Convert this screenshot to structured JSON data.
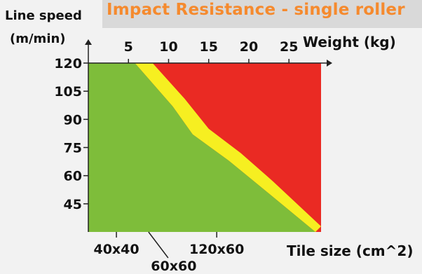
{
  "chart_data": {
    "type": "area",
    "title": "Impact Resistance - single roller",
    "ylabel": [
      "Line speed",
      "(m/min)"
    ],
    "xlabel": "Tile size (cm^2)",
    "x2label": "Weight (kg)",
    "y_ticks": [
      "120",
      "105",
      "90",
      "75",
      "60",
      "45"
    ],
    "y_tick_values": [
      120,
      105,
      90,
      75,
      60,
      45
    ],
    "x2_ticks": [
      "5",
      "10",
      "15",
      "20",
      "25"
    ],
    "x2_tick_values": [
      5,
      10,
      15,
      20,
      25
    ],
    "x_ticks": [
      "40x40",
      "60x60",
      "120x60"
    ],
    "x_tick_weights": [
      3.5,
      7.5,
      16.0
    ],
    "ylim": [
      30,
      120
    ],
    "xlim_weight": [
      0,
      29
    ],
    "grid": false,
    "series": [
      {
        "name": "",
        "color": "#ea2a23",
        "region": "above",
        "boundary": [
          {
            "x": 8.0,
            "y": 120
          },
          {
            "x": 12.0,
            "y": 101
          },
          {
            "x": 15.0,
            "y": 85
          },
          {
            "x": 19.0,
            "y": 72
          },
          {
            "x": 23.0,
            "y": 57
          },
          {
            "x": 29.0,
            "y": 33
          }
        ]
      },
      {
        "name": "",
        "color": "#f6ef21",
        "region": "band"
      },
      {
        "name": "",
        "color": "#7ebd3a",
        "region": "below",
        "boundary": [
          {
            "x": 5.8,
            "y": 120
          },
          {
            "x": 10.5,
            "y": 97
          },
          {
            "x": 13.0,
            "y": 82
          },
          {
            "x": 17.5,
            "y": 68
          },
          {
            "x": 21.5,
            "y": 54
          },
          {
            "x": 28.3,
            "y": 30
          }
        ]
      }
    ]
  }
}
